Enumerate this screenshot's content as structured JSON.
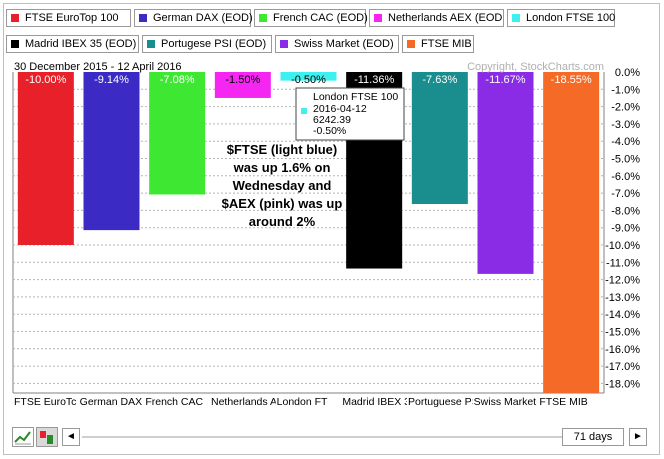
{
  "legend": [
    {
      "label": "FTSE EuroTop 100",
      "color": "#e8202a"
    },
    {
      "label": "German DAX (EOD)",
      "color": "#3b2bc4"
    },
    {
      "label": "French CAC (EOD)",
      "color": "#3ee832"
    },
    {
      "label": "Netherlands AEX (EOD",
      "color": "#f526f2"
    },
    {
      "label": "London FTSE 100",
      "color": "#3ff0f0"
    },
    {
      "label": "Madrid IBEX 35 (EOD)",
      "color": "#000000"
    },
    {
      "label": "Portugese PSI (EOD)",
      "color": "#1a8e8e"
    },
    {
      "label": "Swiss Market (EOD)",
      "color": "#8a2be6"
    },
    {
      "label": "FTSE MIB",
      "color": "#f56a26"
    }
  ],
  "header": {
    "date_range": "30 December 2015 - 12 April 2016",
    "copyright": "Copyright, StockCharts.com"
  },
  "tooltip": {
    "name": "London FTSE 100",
    "date": "2016-04-12",
    "value": "6242.39",
    "change": "-0.50%"
  },
  "annotation": [
    "$FTSE (light blue)",
    "was up 1.6% on",
    "Wednesday and",
    "$AEX (pink)  was up",
    "around 2%"
  ],
  "controls": {
    "days_label": "71 days",
    "left_arrow": "◄",
    "right_arrow": "►"
  },
  "chart_data": {
    "type": "bar",
    "categories": [
      "FTSE EuroTc",
      "German DAX (",
      "French CAC",
      "Netherlands AE",
      "London FT",
      "Madrid IBEX 3",
      "Portuguese PS",
      "Swiss Market (EO",
      "FTSE MIB"
    ],
    "values": [
      -10.0,
      -9.14,
      -7.08,
      -1.5,
      -0.5,
      -11.36,
      -7.63,
      -11.67,
      -18.55
    ],
    "value_labels": [
      "-10.00%",
      "-9.14%",
      "-7.08%",
      "-1.50%",
      "-0.50%",
      "-11.36%",
      "-7.63%",
      "-11.67%",
      "-18.55%"
    ],
    "colors": [
      "#e8202a",
      "#3b2bc4",
      "#3ee832",
      "#f526f2",
      "#3ff0f0",
      "#000000",
      "#1a8e8e",
      "#8a2be6",
      "#f56a26"
    ],
    "ylim": [
      -18.75,
      0
    ],
    "yticks": [
      "0.0%",
      "-1.0%",
      "-2.0%",
      "-3.0%",
      "-4.0%",
      "-5.0%",
      "-6.0%",
      "-7.0%",
      "-8.0%",
      "-9.0%",
      "-10.0%",
      "-11.0%",
      "-12.0%",
      "-13.0%",
      "-14.0%",
      "-15.0%",
      "-16.0%",
      "-17.0%",
      "-18.0%"
    ],
    "ytick_values": [
      0,
      -1,
      -2,
      -3,
      -4,
      -5,
      -6,
      -7,
      -8,
      -9,
      -10,
      -11,
      -12,
      -13,
      -14,
      -15,
      -16,
      -17,
      -18
    ],
    "grid": true
  }
}
